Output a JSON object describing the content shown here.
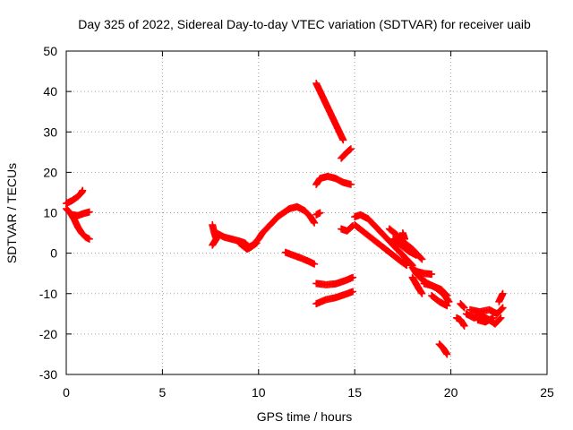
{
  "chart_data": {
    "type": "scatter",
    "title": "Day 325 of 2022, Sidereal Day-to-day VTEC variation (SDTVAR) for receiver uaib",
    "xlabel": "GPS time / hours",
    "ylabel": "SDTVAR / TECUs",
    "xlim": [
      0,
      25
    ],
    "ylim": [
      -30,
      50
    ],
    "xticks": [
      0,
      5,
      10,
      15,
      20,
      25
    ],
    "yticks": [
      -30,
      -20,
      -10,
      0,
      10,
      20,
      30,
      40,
      50
    ],
    "grid": true,
    "marker": "plus",
    "color": "#ff0000",
    "series": [
      {
        "name": "seg-a1",
        "points": [
          [
            0.0,
            12.3
          ],
          [
            0.3,
            13.0
          ],
          [
            0.6,
            14.0
          ],
          [
            0.8,
            15.0
          ],
          [
            0.85,
            15.5
          ]
        ]
      },
      {
        "name": "seg-a2",
        "points": [
          [
            0.0,
            11.0
          ],
          [
            0.2,
            10.0
          ],
          [
            0.4,
            8.5
          ],
          [
            0.6,
            6.5
          ],
          [
            0.8,
            5.0
          ],
          [
            1.0,
            4.0
          ],
          [
            1.2,
            3.5
          ]
        ]
      },
      {
        "name": "seg-a3",
        "points": [
          [
            0.3,
            9.5
          ],
          [
            0.6,
            9.3
          ],
          [
            0.9,
            9.8
          ],
          [
            1.2,
            10.2
          ]
        ]
      },
      {
        "name": "seg-b1",
        "points": [
          [
            7.6,
            7.0
          ],
          [
            7.7,
            5.0
          ],
          [
            7.8,
            3.5
          ],
          [
            7.6,
            2.0
          ]
        ]
      },
      {
        "name": "seg-b2",
        "points": [
          [
            7.8,
            5.0
          ],
          [
            8.2,
            4.0
          ],
          [
            8.6,
            3.5
          ],
          [
            9.0,
            3.0
          ],
          [
            9.3,
            2.5
          ],
          [
            9.5,
            1.5
          ],
          [
            9.7,
            2.0
          ],
          [
            10.0,
            3.5
          ],
          [
            10.2,
            5.0
          ],
          [
            10.5,
            6.5
          ],
          [
            10.8,
            8.0
          ],
          [
            11.0,
            9.0
          ],
          [
            11.3,
            10.0
          ],
          [
            11.6,
            11.0
          ],
          [
            12.0,
            11.5
          ],
          [
            12.4,
            10.5
          ],
          [
            12.7,
            9.0
          ],
          [
            12.9,
            7.5
          ]
        ]
      },
      {
        "name": "seg-b3",
        "points": [
          [
            9.0,
            2.5
          ],
          [
            9.4,
            1.0
          ],
          [
            9.6,
            1.5
          ],
          [
            9.9,
            2.5
          ]
        ]
      },
      {
        "name": "seg-c1",
        "points": [
          [
            11.4,
            0.2
          ],
          [
            11.8,
            -0.5
          ],
          [
            12.2,
            -1.2
          ],
          [
            12.6,
            -2.0
          ],
          [
            12.9,
            -2.7
          ]
        ]
      },
      {
        "name": "seg-c2",
        "points": [
          [
            13.0,
            9.5
          ],
          [
            13.2,
            10.0
          ]
        ]
      },
      {
        "name": "seg-d1",
        "points": [
          [
            13.0,
            42.0
          ],
          [
            13.3,
            39.0
          ],
          [
            13.6,
            36.0
          ],
          [
            13.9,
            33.0
          ],
          [
            14.2,
            30.0
          ],
          [
            14.4,
            28.0
          ]
        ]
      },
      {
        "name": "seg-d2",
        "points": [
          [
            14.3,
            23.5
          ],
          [
            14.6,
            25.0
          ],
          [
            14.8,
            25.8
          ]
        ]
      },
      {
        "name": "seg-d3",
        "points": [
          [
            13.0,
            17.0
          ],
          [
            13.2,
            18.5
          ],
          [
            13.6,
            19.0
          ],
          [
            14.0,
            18.5
          ],
          [
            14.4,
            17.5
          ],
          [
            14.8,
            17.0
          ]
        ]
      },
      {
        "name": "seg-d4",
        "points": [
          [
            14.3,
            6.0
          ],
          [
            14.6,
            5.5
          ],
          [
            14.9,
            6.8
          ]
        ]
      },
      {
        "name": "seg-d5",
        "points": [
          [
            13.0,
            -7.5
          ],
          [
            13.5,
            -7.8
          ],
          [
            14.0,
            -7.6
          ],
          [
            14.5,
            -6.8
          ],
          [
            14.9,
            -6.0
          ]
        ]
      },
      {
        "name": "seg-d6",
        "points": [
          [
            13.0,
            -12.5
          ],
          [
            13.5,
            -11.5
          ],
          [
            14.0,
            -11.0
          ],
          [
            14.5,
            -10.2
          ],
          [
            14.9,
            -9.5
          ]
        ]
      },
      {
        "name": "seg-e1",
        "points": [
          [
            15.0,
            9.0
          ],
          [
            15.3,
            9.5
          ],
          [
            15.7,
            8.5
          ],
          [
            16.0,
            7.0
          ],
          [
            16.3,
            5.5
          ],
          [
            16.6,
            4.0
          ],
          [
            16.9,
            2.5
          ],
          [
            17.2,
            1.0
          ],
          [
            17.5,
            -0.5
          ],
          [
            17.8,
            -2.0
          ],
          [
            18.0,
            -3.0
          ]
        ]
      },
      {
        "name": "seg-e2",
        "points": [
          [
            15.0,
            7.0
          ],
          [
            15.4,
            5.5
          ],
          [
            15.8,
            4.0
          ],
          [
            16.2,
            2.5
          ],
          [
            16.6,
            1.0
          ],
          [
            17.0,
            -0.5
          ],
          [
            17.4,
            -2.0
          ],
          [
            17.7,
            -3.0
          ]
        ]
      },
      {
        "name": "seg-e3",
        "points": [
          [
            16.8,
            6.0
          ],
          [
            17.2,
            4.5
          ],
          [
            17.6,
            2.5
          ],
          [
            18.0,
            1.0
          ],
          [
            18.3,
            -0.5
          ],
          [
            18.5,
            -1.5
          ]
        ]
      },
      {
        "name": "seg-e4",
        "points": [
          [
            17.0,
            3.5
          ],
          [
            17.4,
            2.0
          ],
          [
            17.8,
            0.5
          ],
          [
            18.2,
            -0.5
          ]
        ]
      },
      {
        "name": "seg-e5",
        "points": [
          [
            17.5,
            5.0
          ],
          [
            17.6,
            3.5
          ]
        ]
      },
      {
        "name": "seg-f1",
        "points": [
          [
            18.0,
            -3.5
          ],
          [
            18.2,
            -5.0
          ],
          [
            18.5,
            -6.5
          ],
          [
            18.8,
            -7.5
          ],
          [
            19.2,
            -8.5
          ],
          [
            19.6,
            -10.0
          ],
          [
            19.9,
            -12.0
          ]
        ]
      },
      {
        "name": "seg-f2",
        "points": [
          [
            18.0,
            -6.0
          ],
          [
            18.3,
            -8.5
          ],
          [
            18.5,
            -10.0
          ]
        ]
      },
      {
        "name": "seg-f3",
        "points": [
          [
            18.2,
            -4.5
          ],
          [
            18.6,
            -5.0
          ],
          [
            19.0,
            -5.2
          ]
        ]
      },
      {
        "name": "seg-f4",
        "points": [
          [
            18.6,
            -7.5
          ],
          [
            19.0,
            -8.0
          ],
          [
            19.5,
            -9.0
          ],
          [
            19.8,
            -10.5
          ]
        ]
      },
      {
        "name": "seg-f5",
        "points": [
          [
            19.0,
            -10.5
          ],
          [
            19.4,
            -12.0
          ],
          [
            19.8,
            -13.0
          ]
        ]
      },
      {
        "name": "seg-g1",
        "points": [
          [
            19.4,
            -22.5
          ],
          [
            19.6,
            -23.5
          ],
          [
            19.8,
            -25.0
          ]
        ]
      },
      {
        "name": "seg-h1",
        "points": [
          [
            20.3,
            -16.0
          ],
          [
            20.5,
            -16.5
          ],
          [
            20.7,
            -18.0
          ]
        ]
      },
      {
        "name": "seg-h2",
        "points": [
          [
            20.5,
            -12.5
          ],
          [
            20.7,
            -13.5
          ]
        ]
      },
      {
        "name": "seg-h3",
        "points": [
          [
            20.8,
            -15.0
          ],
          [
            21.2,
            -16.0
          ],
          [
            21.6,
            -15.5
          ],
          [
            22.0,
            -16.5
          ],
          [
            22.3,
            -17.5
          ],
          [
            22.6,
            -16.0
          ]
        ]
      },
      {
        "name": "seg-h4",
        "points": [
          [
            21.0,
            -14.0
          ],
          [
            21.5,
            -14.5
          ],
          [
            22.0,
            -14.0
          ],
          [
            22.4,
            -15.0
          ],
          [
            22.7,
            -13.5
          ]
        ]
      },
      {
        "name": "seg-h5",
        "points": [
          [
            22.5,
            -12.0
          ],
          [
            22.7,
            -10.0
          ]
        ]
      },
      {
        "name": "seg-h6",
        "points": [
          [
            21.4,
            -16.5
          ],
          [
            21.8,
            -17.0
          ],
          [
            22.2,
            -16.0
          ]
        ]
      }
    ]
  }
}
